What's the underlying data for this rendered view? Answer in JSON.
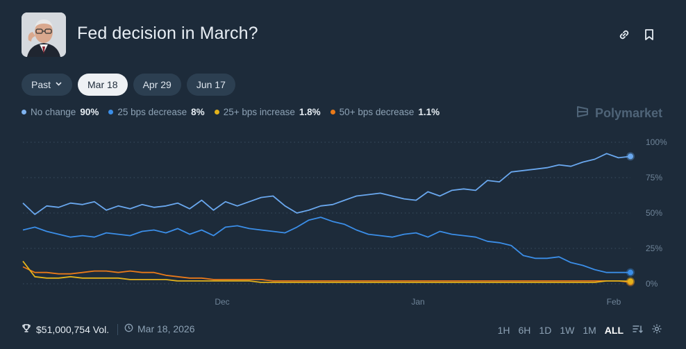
{
  "header": {
    "title": "Fed decision in March?",
    "avatar_alt": "speaker-portrait",
    "link_icon": "link-icon",
    "bookmark_icon": "bookmark-icon"
  },
  "tabs": [
    {
      "label": "Past",
      "active": false,
      "dropdown": true
    },
    {
      "label": "Mar 18",
      "active": true
    },
    {
      "label": "Apr 29",
      "active": false
    },
    {
      "label": "Jun 17",
      "active": false
    }
  ],
  "legend": [
    {
      "name": "No change",
      "value": "90%",
      "color": "#7fb3f0"
    },
    {
      "name": "25 bps decrease",
      "value": "8%",
      "color": "#3b8ee8"
    },
    {
      "name": "25+ bps increase",
      "value": "1.8%",
      "color": "#e3b21b"
    },
    {
      "name": "50+ bps decrease",
      "value": "1.1%",
      "color": "#ea7a19"
    }
  ],
  "brand": "Polymarket",
  "chart_data": {
    "type": "line",
    "y_ticks": [
      "100%",
      "75%",
      "50%",
      "25%",
      "0%"
    ],
    "ylim": [
      0,
      100
    ],
    "x_ticks": [
      "Dec",
      "Jan",
      "Feb"
    ],
    "grid": true,
    "series": [
      {
        "name": "No change",
        "color": "#6aa8ef",
        "values": [
          57,
          49,
          55,
          54,
          57,
          56,
          58,
          52,
          55,
          53,
          56,
          54,
          55,
          57,
          53,
          59,
          52,
          58,
          55,
          58,
          61,
          62,
          55,
          50,
          52,
          55,
          56,
          59,
          62,
          63,
          64,
          62,
          60,
          59,
          65,
          62,
          66,
          67,
          66,
          73,
          72,
          79,
          80,
          81,
          82,
          84,
          83,
          86,
          88,
          92,
          89,
          90
        ]
      },
      {
        "name": "25 bps decrease",
        "color": "#3b8ee8",
        "values": [
          38,
          40,
          37,
          35,
          33,
          34,
          33,
          36,
          35,
          34,
          37,
          38,
          36,
          39,
          35,
          38,
          34,
          40,
          41,
          39,
          38,
          37,
          36,
          40,
          45,
          47,
          44,
          42,
          38,
          35,
          34,
          33,
          35,
          36,
          33,
          37,
          35,
          34,
          33,
          30,
          29,
          27,
          20,
          18,
          18,
          19,
          15,
          13,
          10,
          8,
          8,
          8
        ]
      },
      {
        "name": "25+ bps increase",
        "color": "#e3b21b",
        "values": [
          16,
          5,
          4,
          4,
          5,
          4,
          4,
          4,
          4,
          3,
          3,
          3,
          3,
          2,
          2,
          2,
          2,
          2,
          2,
          2,
          1,
          1,
          1,
          1,
          1,
          1,
          1,
          1,
          1,
          1,
          1,
          1,
          1,
          1,
          1,
          1,
          1,
          1,
          1,
          1,
          1,
          1,
          1,
          1,
          1,
          1,
          1,
          1,
          1,
          2,
          2,
          1.8
        ]
      },
      {
        "name": "50+ bps decrease",
        "color": "#ea7a19",
        "values": [
          12,
          8,
          8,
          7,
          7,
          8,
          9,
          9,
          8,
          9,
          8,
          8,
          6,
          5,
          4,
          4,
          3,
          3,
          3,
          3,
          3,
          2,
          2,
          2,
          2,
          2,
          2,
          2,
          2,
          2,
          2,
          2,
          2,
          2,
          2,
          2,
          2,
          2,
          2,
          2,
          2,
          2,
          2,
          2,
          2,
          2,
          2,
          2,
          2,
          2,
          2,
          1.1
        ]
      }
    ]
  },
  "footer": {
    "volume": "$51,000,754 Vol.",
    "date": "Mar 18, 2026",
    "ranges": [
      {
        "label": "1H",
        "active": false
      },
      {
        "label": "6H",
        "active": false
      },
      {
        "label": "1D",
        "active": false
      },
      {
        "label": "1W",
        "active": false
      },
      {
        "label": "1M",
        "active": false
      },
      {
        "label": "ALL",
        "active": true
      }
    ]
  }
}
